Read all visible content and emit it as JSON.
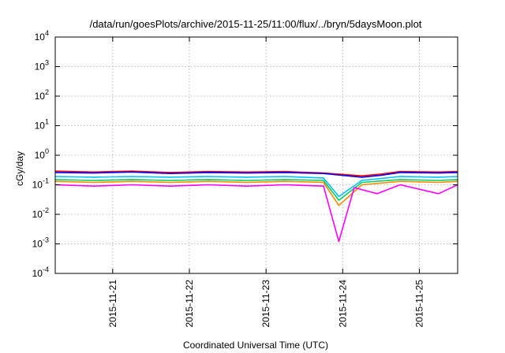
{
  "chart_data": {
    "type": "line",
    "title": "/data/run/goesPlots/archive/2015-11-25/11:00/flux/../bryn/5daysMoon.plot",
    "xlabel": "Coordinated Universal Time (UTC)",
    "ylabel": "cGy/day",
    "yscale": "log",
    "ylim": [
      0.0001,
      10000
    ],
    "y_ticks": [
      {
        "exp": "-4",
        "value": 0.0001
      },
      {
        "exp": "-3",
        "value": 0.001
      },
      {
        "exp": "-2",
        "value": 0.01
      },
      {
        "exp": "-1",
        "value": 0.1
      },
      {
        "exp": "0",
        "value": 1
      },
      {
        "exp": "1",
        "value": 10
      },
      {
        "exp": "2",
        "value": 100
      },
      {
        "exp": "3",
        "value": 1000
      },
      {
        "exp": "4",
        "value": 10000
      }
    ],
    "xlim": [
      "2015-11-20 06:00",
      "2015-11-25 12:00"
    ],
    "x_ticks": [
      "2015-11-21",
      "2015-11-22",
      "2015-11-23",
      "2015-11-24",
      "2015-11-25"
    ],
    "grid": true,
    "legend": "none",
    "series": [
      {
        "color": "#ff0000",
        "values": [
          [
            0,
            0.29
          ],
          [
            0.5,
            0.27
          ],
          [
            1,
            0.29
          ],
          [
            1.5,
            0.26
          ],
          [
            2,
            0.28
          ],
          [
            2.5,
            0.27
          ],
          [
            3,
            0.28
          ],
          [
            3.5,
            0.25
          ],
          [
            4,
            0.2
          ],
          [
            4.25,
            0.23
          ],
          [
            4.5,
            0.28
          ],
          [
            5,
            0.27
          ],
          [
            5.25,
            0.28
          ]
        ]
      },
      {
        "color": "#0000ff",
        "values": [
          [
            0,
            0.26
          ],
          [
            0.5,
            0.25
          ],
          [
            1,
            0.27
          ],
          [
            1.5,
            0.24
          ],
          [
            2,
            0.26
          ],
          [
            2.5,
            0.25
          ],
          [
            3,
            0.26
          ],
          [
            3.5,
            0.24
          ],
          [
            4,
            0.18
          ],
          [
            4.25,
            0.21
          ],
          [
            4.5,
            0.26
          ],
          [
            5,
            0.25
          ],
          [
            5.25,
            0.26
          ]
        ]
      },
      {
        "color": "#00bfff",
        "values": [
          [
            0,
            0.19
          ],
          [
            0.5,
            0.18
          ],
          [
            1,
            0.19
          ],
          [
            1.5,
            0.18
          ],
          [
            2,
            0.19
          ],
          [
            2.5,
            0.18
          ],
          [
            3,
            0.19
          ],
          [
            3.5,
            0.17
          ],
          [
            3.7,
            0.04
          ],
          [
            4,
            0.14
          ],
          [
            4.5,
            0.19
          ],
          [
            5,
            0.18
          ],
          [
            5.25,
            0.19
          ]
        ]
      },
      {
        "color": "#00cc66",
        "values": [
          [
            0,
            0.15
          ],
          [
            0.5,
            0.14
          ],
          [
            1,
            0.15
          ],
          [
            1.5,
            0.14
          ],
          [
            2,
            0.15
          ],
          [
            2.5,
            0.14
          ],
          [
            3,
            0.15
          ],
          [
            3.5,
            0.14
          ],
          [
            3.7,
            0.03
          ],
          [
            4,
            0.12
          ],
          [
            4.5,
            0.15
          ],
          [
            5,
            0.14
          ],
          [
            5.25,
            0.15
          ]
        ]
      },
      {
        "color": "#ff8800",
        "values": [
          [
            0,
            0.13
          ],
          [
            0.5,
            0.12
          ],
          [
            1,
            0.13
          ],
          [
            1.5,
            0.12
          ],
          [
            2,
            0.13
          ],
          [
            2.5,
            0.12
          ],
          [
            3,
            0.13
          ],
          [
            3.5,
            0.12
          ],
          [
            3.7,
            0.02
          ],
          [
            4,
            0.1
          ],
          [
            4.5,
            0.13
          ],
          [
            5,
            0.12
          ],
          [
            5.25,
            0.13
          ]
        ]
      },
      {
        "color": "#ff00ff",
        "values": [
          [
            0,
            0.1
          ],
          [
            0.5,
            0.09
          ],
          [
            1,
            0.1
          ],
          [
            1.5,
            0.09
          ],
          [
            2,
            0.1
          ],
          [
            2.5,
            0.09
          ],
          [
            3,
            0.1
          ],
          [
            3.5,
            0.09
          ],
          [
            3.7,
            0.0012
          ],
          [
            3.9,
            0.08
          ],
          [
            4.2,
            0.05
          ],
          [
            4.5,
            0.1
          ],
          [
            5,
            0.05
          ],
          [
            5.25,
            0.1
          ]
        ]
      }
    ]
  }
}
